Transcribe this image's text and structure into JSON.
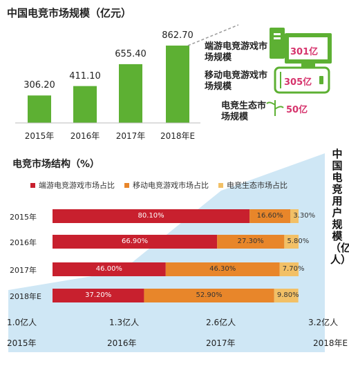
{
  "chart_data": [
    {
      "type": "bar",
      "title": "中国电竞市场规模（亿元）",
      "categories": [
        "2015年",
        "2016年",
        "2017年",
        "2018年E"
      ],
      "values": [
        306.2,
        411.1,
        655.4,
        862.7
      ],
      "value_labels": [
        "306.20",
        "411.10",
        "655.40",
        "862.70"
      ],
      "color": "#5db033",
      "ylim": [
        0,
        900
      ],
      "breakdown": [
        {
          "label": "端游电竞游戏市场规模",
          "value_label": "301亿",
          "icon": "desktop-computer-icon"
        },
        {
          "label": "移动电竞游戏市场规模",
          "value_label": "305亿",
          "icon": "mobile-phone-icon"
        },
        {
          "label": "电竞生态市场规模",
          "value_label": "50亿",
          "icon": "sprout-icon"
        }
      ]
    },
    {
      "type": "stacked-bar-horizontal",
      "title": "电竞市场结构（%）",
      "categories": [
        "2015年",
        "2016年",
        "2017年",
        "2018年E"
      ],
      "series": [
        {
          "name": "端游电竞游戏市场占比",
          "color": "#c8202e",
          "values": [
            80.1,
            66.9,
            46.0,
            37.2
          ],
          "labels": [
            "80.10%",
            "66.90%",
            "46.00%",
            "37.20%"
          ]
        },
        {
          "name": "移动电竞游戏市场占比",
          "color": "#e8862a",
          "values": [
            16.6,
            27.3,
            46.3,
            52.9
          ],
          "labels": [
            "16.60%",
            "27.30%",
            "46.30%",
            "52.90%"
          ]
        },
        {
          "name": "电竞生态市场占比",
          "color": "#f2c066",
          "values": [
            3.3,
            5.8,
            7.7,
            9.8
          ],
          "labels": [
            "3.30%",
            "5.80%",
            "7.70%",
            "9.80%"
          ]
        }
      ],
      "xlim": [
        0,
        100
      ],
      "legend": "top"
    },
    {
      "type": "area",
      "title": "中国电竞用户规模（亿人）",
      "x": [
        "2015年",
        "2016年",
        "2017年",
        "2018年E"
      ],
      "values": [
        1.0,
        1.3,
        2.6,
        3.2
      ],
      "value_labels": [
        "1.0亿人",
        "1.3亿人",
        "2.6亿人",
        "3.2亿人"
      ],
      "color": "#cfe7f5"
    }
  ]
}
